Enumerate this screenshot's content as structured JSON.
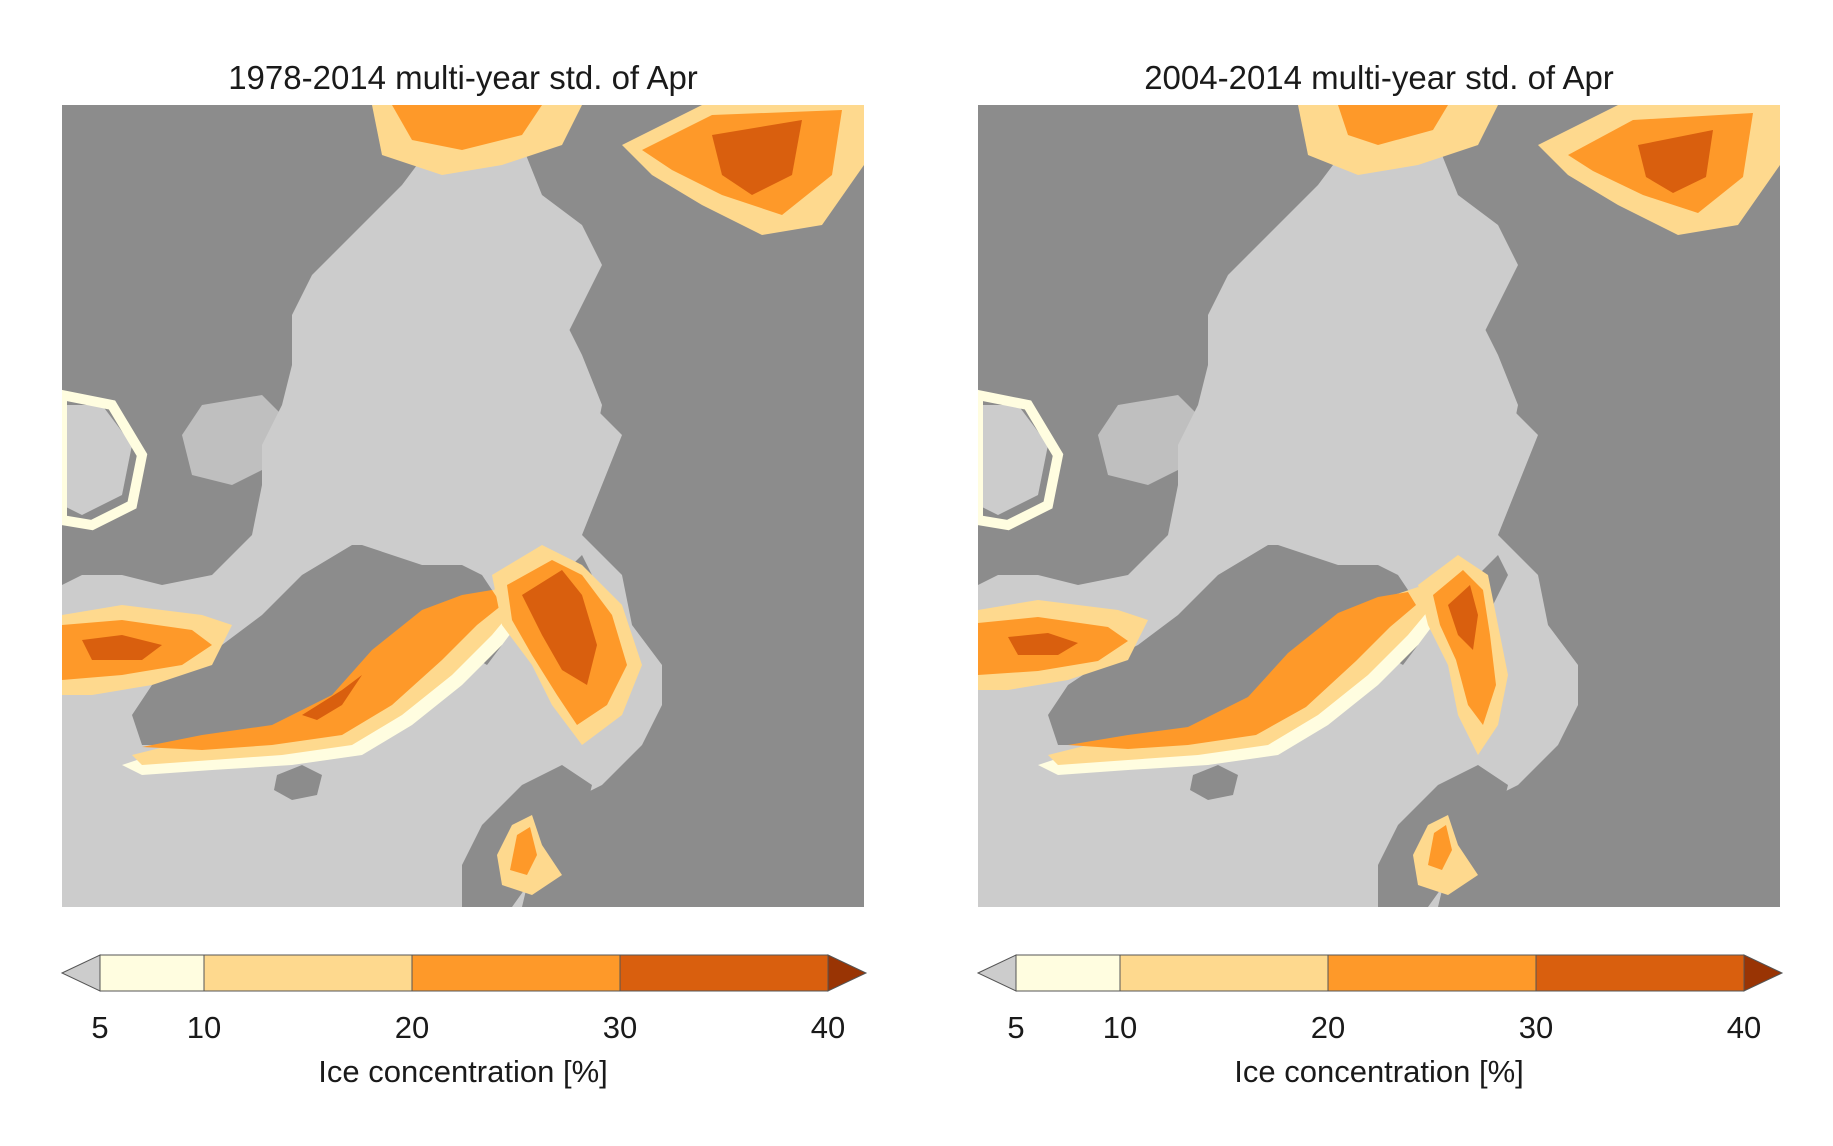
{
  "panels": [
    {
      "title": "1978-2014 multi-year std. of Apr",
      "colorbar_label": "Ice concentration [%]",
      "ticks": [
        "5",
        "10",
        "20",
        "30",
        "40"
      ]
    },
    {
      "title": "2004-2014 multi-year std. of Apr",
      "colorbar_label": "Ice concentration [%]",
      "ticks": [
        "5",
        "10",
        "20",
        "30",
        "40"
      ]
    }
  ],
  "colorbar": {
    "boundaries": [
      5,
      10,
      20,
      30,
      40
    ],
    "colors": [
      "#fffde0",
      "#fed98e",
      "#fe9929",
      "#d95f0e"
    ],
    "under_color": "#cccccc",
    "over_color": "#993404",
    "extend": "both"
  },
  "map_colors": {
    "land": "#8c8c8c",
    "ocean_low": "#cccccc",
    "outline": "#bdbdbd"
  },
  "projection": "north-polar-stereographic"
}
